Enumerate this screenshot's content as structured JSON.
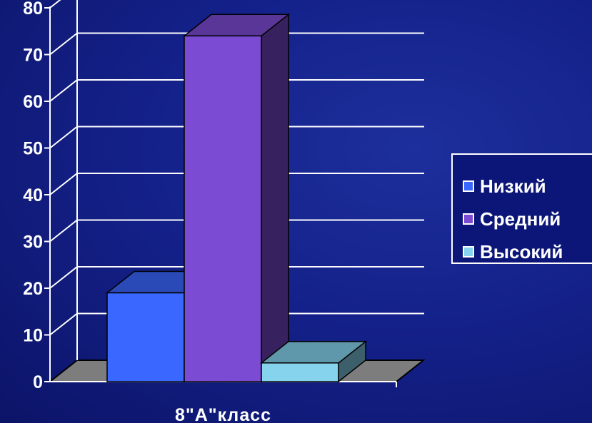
{
  "chart_data": {
    "type": "bar",
    "categories": [
      "8\"А\"класс"
    ],
    "series": [
      {
        "name": "Низкий",
        "values": [
          19
        ],
        "color": "#3a67ff"
      },
      {
        "name": "Средний",
        "values": [
          74
        ],
        "color": "#7b4bd3"
      },
      {
        "name": "Высокий",
        "values": [
          4
        ],
        "color": "#86d3ee"
      }
    ],
    "ylim": [
      0,
      80
    ],
    "yticks": [
      "0",
      "10",
      "20",
      "30",
      "40",
      "50",
      "60",
      "70",
      "80"
    ],
    "grid": true,
    "legend_position": "right",
    "style": "3d-column"
  }
}
